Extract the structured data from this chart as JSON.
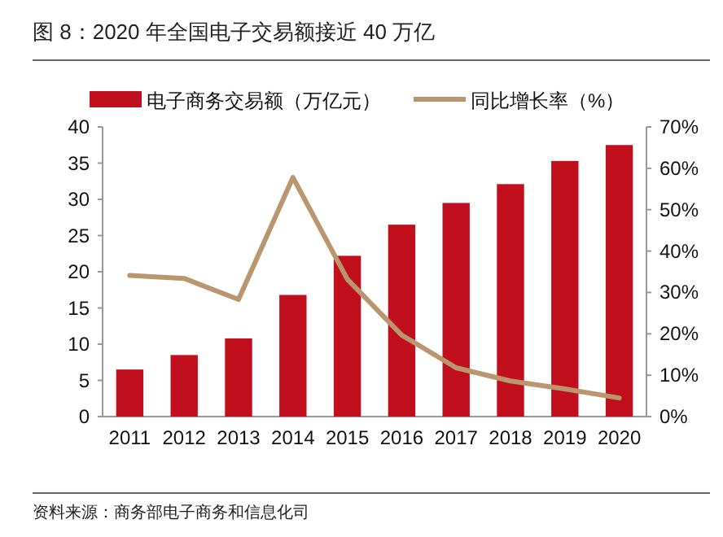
{
  "chart_data": {
    "type": "bar",
    "title": "图 8：2020 年全国电子交易额接近 40 万亿",
    "categories": [
      "2011",
      "2012",
      "2013",
      "2014",
      "2015",
      "2016",
      "2017",
      "2018",
      "2019",
      "2020"
    ],
    "series": [
      {
        "name": "电子商务交易额（万亿元）",
        "color": "#c10f1e",
        "values": [
          6.5,
          8.5,
          10.8,
          16.8,
          22.2,
          26.5,
          29.5,
          32.1,
          35.3,
          37.5
        ]
      },
      {
        "name": "同比增长率（%）",
        "type": "line",
        "axis": "y2",
        "color": "#b9966e",
        "values": [
          34.1,
          33.4,
          28.3,
          57.8,
          33.2,
          19.7,
          11.8,
          8.6,
          6.7,
          4.5
        ]
      }
    ],
    "ylim": [
      0,
      40
    ],
    "yticks": [
      0,
      5,
      10,
      15,
      20,
      25,
      30,
      35,
      40
    ],
    "y2lim": [
      0,
      70
    ],
    "y2ticks": [
      {
        "value": 0,
        "label": "0%"
      },
      {
        "value": 10,
        "label": "10%"
      },
      {
        "value": 20,
        "label": "20%"
      },
      {
        "value": 30,
        "label": "30%"
      },
      {
        "value": 40,
        "label": "40%"
      },
      {
        "value": 50,
        "label": "50%"
      },
      {
        "value": 60,
        "label": "60%"
      },
      {
        "value": 70,
        "label": "70%"
      }
    ],
    "legend": "top",
    "grid": false,
    "marker": "none",
    "line_style": "solid",
    "annotations": [
      "资料来源：商务部电子商务和信息化司"
    ]
  }
}
